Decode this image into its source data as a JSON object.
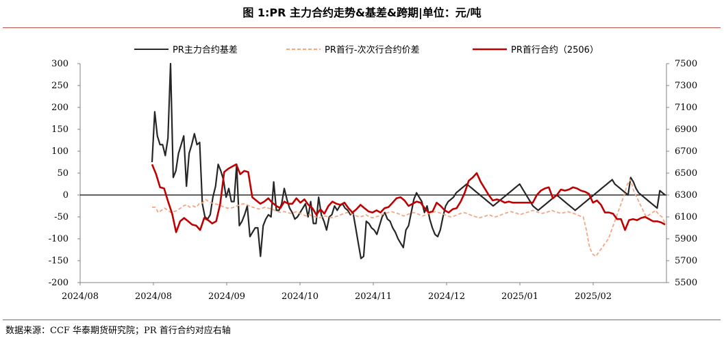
{
  "title": "图 1:PR 主力合约走势&基差&跨期|单位：元/吨",
  "source": "数据来源：CCF  华泰期货研究院；PR 首行合约对应右轴",
  "chart_data": {
    "type": "line",
    "x_ticks": [
      "2024/08",
      "2024/08",
      "2024/09",
      "2024/10",
      "2024/11",
      "2024/12",
      "2025/01",
      "2025/02"
    ],
    "y_left": {
      "range": [
        -200,
        300
      ],
      "step": 50,
      "ticks": [
        "300",
        "250",
        "200",
        "150",
        "100",
        "50",
        "0",
        "-50",
        "-100",
        "-150",
        "-200"
      ]
    },
    "y_right": {
      "range": [
        5500,
        7500
      ],
      "step": 200,
      "ticks": [
        "7500",
        "7300",
        "7100",
        "6900",
        "6700",
        "6500",
        "6300",
        "6100",
        "5900",
        "5700",
        "5500"
      ]
    },
    "legend_position": "top",
    "series": [
      {
        "name": "PR主力合约基差",
        "axis": "left",
        "color": "#262626",
        "style": "solid",
        "values": [
          75,
          190,
          135,
          115,
          115,
          90,
          130,
          300,
          40,
          55,
          95,
          115,
          135,
          20,
          95,
          115,
          140,
          115,
          120,
          -20,
          -50,
          -55,
          -45,
          -5,
          20,
          70,
          55,
          35,
          -5,
          15,
          -15,
          -15,
          70,
          -70,
          -60,
          -45,
          -25,
          -95,
          -85,
          -75,
          -75,
          -140,
          -70,
          -55,
          -45,
          -50,
          30,
          -35,
          -35,
          -20,
          15,
          -10,
          -30,
          -40,
          -55,
          -50,
          -40,
          -30,
          -20,
          -50,
          -15,
          -65,
          -65,
          -5,
          -45,
          -60,
          -80,
          -50,
          -45,
          -25,
          -35,
          -25,
          -20,
          -30,
          -35,
          -45,
          -40,
          -75,
          -110,
          -145,
          -140,
          -60,
          -65,
          -75,
          -80,
          -90,
          -70,
          -50,
          -40,
          -55,
          -60,
          -75,
          -85,
          -100,
          -110,
          -120,
          -80,
          -70,
          -40,
          -10,
          5,
          -5,
          -15,
          -40,
          -25,
          -55,
          -75,
          -90,
          -95,
          -80,
          -50,
          -25,
          -15,
          -10,
          -5,
          5,
          10,
          15,
          20,
          25,
          20,
          15,
          10,
          5,
          0,
          -5,
          -10,
          -15,
          -20,
          -25,
          -20,
          -15,
          -10,
          -5,
          0,
          5,
          10,
          15,
          20,
          25,
          15,
          5,
          -5,
          -15,
          -25,
          -30,
          -35,
          -30,
          -25,
          -20,
          -15,
          -10,
          -5,
          0,
          -5,
          -10,
          -15,
          -20,
          -25,
          -30,
          -35,
          -30,
          -25,
          -20,
          -15,
          -10,
          -5,
          0,
          5,
          10,
          15,
          20,
          25,
          30,
          35,
          25,
          20,
          15,
          10,
          5,
          0,
          40,
          30,
          15,
          5,
          0,
          -5,
          -10,
          -15,
          -20,
          -25,
          -30,
          10,
          5,
          0
        ]
      },
      {
        "name": "PR首行-次次行合约价差",
        "axis": "left",
        "color": "#f4a582",
        "style": "dashed",
        "values": [
          -28,
          -28,
          -40,
          -35,
          -30,
          -35,
          -40,
          -38,
          -35,
          -30,
          -25,
          -22,
          -28,
          -25,
          -28,
          -20,
          -18,
          -10,
          -15,
          -18,
          -20,
          -22,
          -25,
          -28,
          -30,
          -30,
          -28,
          -25,
          -22,
          -20,
          -22,
          -25,
          -28,
          -30,
          -32,
          -30,
          -28,
          -30,
          -32,
          -35,
          -38,
          -40,
          -38,
          -40,
          -42,
          -40,
          -38,
          -42,
          -45,
          -48,
          -45,
          -48,
          -50,
          -52,
          -50,
          -48,
          -50,
          -52,
          -50,
          -48,
          -45,
          -42,
          -40,
          -42,
          -45,
          -48,
          -50,
          -48,
          -45,
          -50,
          -52,
          -50,
          -48,
          -45,
          -42,
          -40,
          -38,
          -40,
          -42,
          -45,
          -48,
          -45,
          -42,
          -40,
          -42,
          -45,
          -48,
          -45,
          -42,
          -40,
          -38,
          -40,
          -42,
          -45,
          -48,
          -50,
          -48,
          -45,
          -42,
          -40,
          -42,
          -45,
          -48,
          -50,
          -52,
          -50,
          -48,
          -45,
          -48,
          -50,
          -48,
          -45,
          -42,
          -40,
          -38,
          -40,
          -42,
          -45,
          -42,
          -40,
          -38,
          -35,
          -38,
          -40,
          -42,
          -40,
          -38,
          -35,
          -38,
          -40,
          -42,
          -40,
          -38,
          -40,
          -42,
          -45,
          -48,
          -50,
          -80,
          -120,
          -135,
          -140,
          -130,
          -120,
          -110,
          -100,
          -80,
          -60,
          -40,
          -20,
          0,
          25,
          35,
          10,
          -5,
          -20,
          -35,
          -50,
          -45,
          -40,
          -35,
          -45,
          -50,
          -65
        ]
      },
      {
        "name": "PR首行合约（2506）",
        "axis": "right",
        "color": "#c00000",
        "style": "solid",
        "values": [
          6580,
          6490,
          6370,
          6360,
          6240,
          6130,
          5960,
          6060,
          6090,
          6060,
          6030,
          6020,
          5980,
          6090,
          6070,
          6040,
          6060,
          6220,
          6510,
          6540,
          6560,
          6580,
          6490,
          6520,
          6510,
          6280,
          6250,
          6220,
          6240,
          6270,
          6230,
          6200,
          6180,
          6240,
          6220,
          6220,
          6270,
          6230,
          6260,
          6210,
          6180,
          6120,
          6170,
          6130,
          6200,
          6240,
          6220,
          6210,
          6230,
          6180,
          6140,
          6170,
          6210,
          6180,
          6150,
          6140,
          6160,
          6140,
          6180,
          6190,
          6230,
          6270,
          6280,
          6250,
          6200,
          6220,
          6240,
          6230,
          6180,
          6140,
          6150,
          6230,
          6200,
          6160,
          6140,
          6170,
          6180,
          6240,
          6320,
          6430,
          6460,
          6500,
          6420,
          6360,
          6300,
          6250,
          6260,
          6250,
          6230,
          6240,
          6230,
          6230,
          6230,
          6230,
          6230,
          6230,
          6300,
          6340,
          6360,
          6370,
          6270,
          6300,
          6350,
          6340,
          6350,
          6370,
          6360,
          6340,
          6330,
          6310,
          6230,
          6250,
          6210,
          6140,
          6140,
          6130,
          6080,
          6080,
          5980,
          6070,
          6080,
          6070,
          6090,
          6100,
          6080,
          6060,
          6060,
          6050,
          6030
        ]
      }
    ]
  }
}
